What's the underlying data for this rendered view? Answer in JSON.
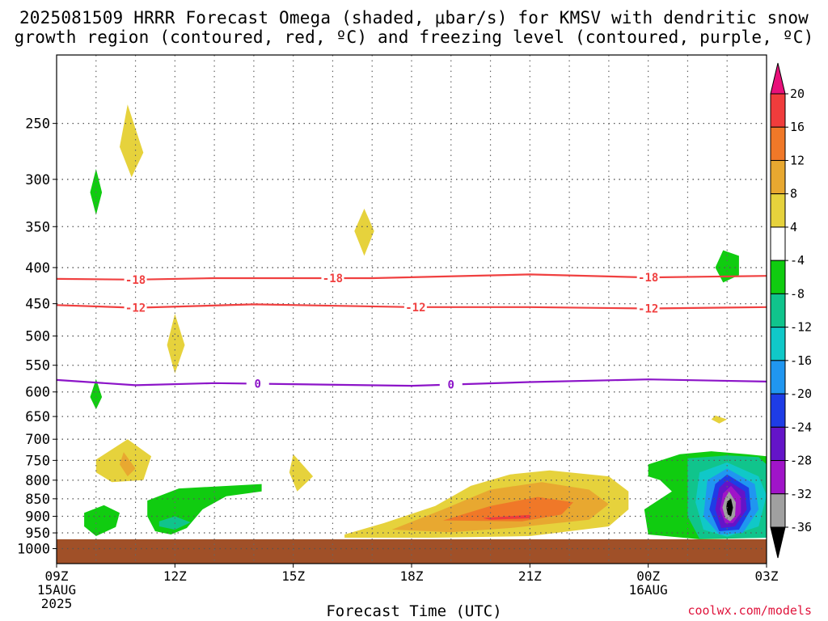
{
  "title_line1": "2025081509 HRRR Forecast Omega (shaded, μbar/s) for KMSV with dendritic snow",
  "title_line2": "growth region (contoured, red, ºC) and freezing level (contoured, purple, ºC)",
  "credit": "coolwx.com/models",
  "chart_data": {
    "type": "contour",
    "title": "2025081509 HRRR Forecast Omega (shaded, μbar/s) for KMSV with dendritic snow growth region (contoured, red, ºC) and freezing level (contoured, purple, ºC)",
    "xlabel": "Forecast Time (UTC)",
    "ylabel": "",
    "x_ticks": [
      {
        "hour": 0,
        "label": "09Z",
        "label2": "15AUG",
        "label3": "2025"
      },
      {
        "hour": 3,
        "label": "12Z"
      },
      {
        "hour": 6,
        "label": "15Z"
      },
      {
        "hour": 9,
        "label": "18Z"
      },
      {
        "hour": 12,
        "label": "21Z"
      },
      {
        "hour": 15,
        "label": "00Z",
        "label2": "16AUG"
      },
      {
        "hour": 18,
        "label": "03Z"
      }
    ],
    "xlim": [
      0,
      18
    ],
    "y_scale": "log",
    "ylim": [
      1050,
      200
    ],
    "y_ticks": [
      250,
      300,
      350,
      400,
      450,
      500,
      550,
      600,
      650,
      700,
      750,
      800,
      850,
      900,
      950,
      1000
    ],
    "grid": true,
    "colorbar": {
      "labels": [
        "20",
        "16",
        "12",
        "8",
        "4",
        "-4",
        "-8",
        "-12",
        "-16",
        "-20",
        "-24",
        "-28",
        "-32",
        "-36"
      ],
      "colors": [
        "#e8107a",
        "#f03c3c",
        "#f07828",
        "#e8a830",
        "#e6d23c",
        "#ffffff",
        "#10cc10",
        "#10c48c",
        "#10c8c8",
        "#2096f0",
        "#1e3ce6",
        "#6414c8",
        "#a014c8",
        "#a0a0a0",
        "#000000"
      ]
    },
    "temperature_contours": [
      {
        "value": -18,
        "color": "#f04040",
        "label": "-18",
        "points": [
          [
            0,
            415
          ],
          [
            2,
            416
          ],
          [
            4,
            414
          ],
          [
            8,
            414
          ],
          [
            12,
            409
          ],
          [
            15,
            413
          ],
          [
            18,
            411
          ]
        ],
        "label_hours": [
          2.0,
          7.0,
          15.0
        ]
      },
      {
        "value": -12,
        "color": "#f04040",
        "label": "-12",
        "points": [
          [
            0,
            452
          ],
          [
            2,
            456
          ],
          [
            5,
            451
          ],
          [
            9,
            455
          ],
          [
            12,
            455
          ],
          [
            15,
            457
          ],
          [
            18,
            455
          ]
        ],
        "label_hours": [
          2.0,
          9.1,
          15.0
        ]
      },
      {
        "value": 0,
        "color": "#8c14c8",
        "label": "0",
        "points": [
          [
            0,
            577
          ],
          [
            2,
            587
          ],
          [
            4,
            583
          ],
          [
            6,
            585
          ],
          [
            9,
            588
          ],
          [
            12,
            581
          ],
          [
            15,
            576
          ],
          [
            18,
            580
          ]
        ],
        "label_hours": [
          5.1,
          10.0
        ]
      }
    ],
    "omega_regions": [
      {
        "level": 4,
        "color": "#e6d23c",
        "points": [
          [
            1.8,
            235
          ],
          [
            2.2,
            275
          ],
          [
            1.9,
            298
          ],
          [
            1.6,
            270
          ]
        ]
      },
      {
        "level": -4,
        "color": "#10cc10",
        "points": [
          [
            1.0,
            290
          ],
          [
            1.15,
            313
          ],
          [
            1.0,
            337
          ],
          [
            0.85,
            313
          ]
        ]
      },
      {
        "level": 4,
        "color": "#e6d23c",
        "points": [
          [
            7.8,
            330
          ],
          [
            8.05,
            355
          ],
          [
            7.8,
            385
          ],
          [
            7.55,
            355
          ]
        ]
      },
      {
        "level": -4,
        "color": "#10cc10",
        "points": [
          [
            16.9,
            378
          ],
          [
            17.3,
            385
          ],
          [
            17.3,
            410
          ],
          [
            16.9,
            420
          ],
          [
            16.7,
            400
          ]
        ]
      },
      {
        "level": 4,
        "color": "#e6d23c",
        "points": [
          [
            3.0,
            465
          ],
          [
            3.25,
            515
          ],
          [
            3.0,
            565
          ],
          [
            2.8,
            515
          ]
        ]
      },
      {
        "level": -4,
        "color": "#10cc10",
        "points": [
          [
            1.0,
            575
          ],
          [
            1.15,
            610
          ],
          [
            1.0,
            635
          ],
          [
            0.85,
            610
          ]
        ]
      },
      {
        "level": 4,
        "color": "#e6d23c",
        "points": [
          [
            16.7,
            648
          ],
          [
            17.0,
            656
          ],
          [
            16.8,
            665
          ],
          [
            16.6,
            656
          ]
        ]
      },
      {
        "level": 4,
        "color": "#e6d23c",
        "points": [
          [
            1.0,
            748
          ],
          [
            1.8,
            700
          ],
          [
            2.4,
            740
          ],
          [
            2.2,
            800
          ],
          [
            1.4,
            805
          ],
          [
            1.0,
            780
          ]
        ]
      },
      {
        "level": 8,
        "color": "#e8a830",
        "points": [
          [
            1.7,
            730
          ],
          [
            2.0,
            770
          ],
          [
            1.8,
            790
          ],
          [
            1.6,
            760
          ]
        ]
      },
      {
        "level": 4,
        "color": "#e6d23c",
        "points": [
          [
            6.0,
            735
          ],
          [
            6.5,
            790
          ],
          [
            6.1,
            830
          ],
          [
            5.9,
            780
          ]
        ]
      },
      {
        "level": -4,
        "color": "#10cc10",
        "points": [
          [
            0.7,
            890
          ],
          [
            1.2,
            868
          ],
          [
            1.6,
            890
          ],
          [
            1.5,
            932
          ],
          [
            1.0,
            960
          ],
          [
            0.7,
            930
          ]
        ]
      },
      {
        "level": -4,
        "color": "#10cc10",
        "points": [
          [
            2.3,
            855
          ],
          [
            3.1,
            822
          ],
          [
            5.2,
            810
          ],
          [
            5.2,
            830
          ],
          [
            4.3,
            843
          ],
          [
            3.7,
            880
          ],
          [
            3.3,
            935
          ],
          [
            2.9,
            955
          ],
          [
            2.5,
            945
          ],
          [
            2.3,
            900
          ]
        ]
      },
      {
        "level": -8,
        "color": "#10c48c",
        "points": [
          [
            2.6,
            915
          ],
          [
            3.0,
            900
          ],
          [
            3.4,
            918
          ],
          [
            3.0,
            940
          ],
          [
            2.6,
            930
          ]
        ]
      },
      {
        "level": 4,
        "color": "#e6d23c",
        "points": [
          [
            7.3,
            955
          ],
          [
            8.3,
            920
          ],
          [
            9.6,
            870
          ],
          [
            10.5,
            815
          ],
          [
            11.5,
            785
          ],
          [
            12.5,
            775
          ],
          [
            14.0,
            790
          ],
          [
            14.5,
            830
          ],
          [
            14.5,
            880
          ],
          [
            14.0,
            930
          ],
          [
            12.0,
            960
          ],
          [
            9.5,
            965
          ],
          [
            7.3,
            965
          ]
        ]
      },
      {
        "level": 8,
        "color": "#e8a830",
        "points": [
          [
            8.5,
            940
          ],
          [
            9.8,
            880
          ],
          [
            11.0,
            825
          ],
          [
            12.3,
            805
          ],
          [
            13.5,
            825
          ],
          [
            14.0,
            865
          ],
          [
            13.5,
            910
          ],
          [
            11.5,
            935
          ],
          [
            10.0,
            948
          ]
        ]
      },
      {
        "level": 12,
        "color": "#f07828",
        "points": [
          [
            9.8,
            912
          ],
          [
            11.0,
            870
          ],
          [
            12.2,
            845
          ],
          [
            13.1,
            860
          ],
          [
            12.8,
            895
          ],
          [
            11.8,
            915
          ]
        ]
      },
      {
        "level": 16,
        "color": "#f03c3c",
        "points": [
          [
            10.8,
            905
          ],
          [
            12.0,
            896
          ],
          [
            12.0,
            906
          ],
          [
            11.0,
            910
          ]
        ]
      },
      {
        "level": -4,
        "color": "#10cc10",
        "points": [
          [
            15.0,
            760
          ],
          [
            15.8,
            735
          ],
          [
            16.6,
            728
          ],
          [
            17.5,
            735
          ],
          [
            18,
            740
          ],
          [
            18,
            965
          ],
          [
            16.3,
            970
          ],
          [
            15.0,
            955
          ],
          [
            14.9,
            880
          ],
          [
            15.6,
            830
          ],
          [
            15.3,
            800
          ],
          [
            15.0,
            790
          ]
        ]
      },
      {
        "level": -8,
        "color": "#10c48c",
        "points": [
          [
            16.0,
            745
          ],
          [
            17.0,
            738
          ],
          [
            17.8,
            742
          ],
          [
            18,
            760
          ],
          [
            18,
            965
          ],
          [
            16.3,
            968
          ],
          [
            16.0,
            900
          ]
        ]
      },
      {
        "level": -12,
        "color": "#10c8c8",
        "points": [
          [
            16.3,
            780
          ],
          [
            17.0,
            755
          ],
          [
            17.8,
            790
          ],
          [
            18,
            840
          ],
          [
            17.8,
            930
          ],
          [
            17.0,
            962
          ],
          [
            16.4,
            940
          ],
          [
            16.2,
            860
          ]
        ]
      },
      {
        "level": -16,
        "color": "#2096f0",
        "points": [
          [
            16.5,
            800
          ],
          [
            17.0,
            770
          ],
          [
            17.7,
            810
          ],
          [
            17.8,
            880
          ],
          [
            17.4,
            950
          ],
          [
            16.8,
            955
          ],
          [
            16.4,
            900
          ]
        ]
      },
      {
        "level": -20,
        "color": "#1e3ce6",
        "points": [
          [
            16.7,
            810
          ],
          [
            17.0,
            785
          ],
          [
            17.55,
            820
          ],
          [
            17.6,
            880
          ],
          [
            17.3,
            940
          ],
          [
            16.8,
            945
          ],
          [
            16.55,
            880
          ]
        ]
      },
      {
        "level": -24,
        "color": "#6414c8",
        "points": [
          [
            16.8,
            820
          ],
          [
            17.0,
            800
          ],
          [
            17.45,
            830
          ],
          [
            17.5,
            880
          ],
          [
            17.2,
            930
          ],
          [
            16.85,
            935
          ],
          [
            16.7,
            880
          ]
        ]
      },
      {
        "level": -28,
        "color": "#a014c8",
        "points": [
          [
            16.9,
            835
          ],
          [
            17.1,
            815
          ],
          [
            17.35,
            845
          ],
          [
            17.35,
            890
          ],
          [
            17.15,
            920
          ],
          [
            16.95,
            920
          ],
          [
            16.82,
            880
          ]
        ]
      },
      {
        "level": -32,
        "color": "#a0a0a0",
        "points": [
          [
            16.95,
            848
          ],
          [
            17.05,
            830
          ],
          [
            17.22,
            860
          ],
          [
            17.2,
            900
          ],
          [
            17.08,
            915
          ],
          [
            16.95,
            905
          ],
          [
            16.88,
            875
          ]
        ]
      },
      {
        "level": -36,
        "color": "#000000",
        "points": [
          [
            17.0,
            858
          ],
          [
            17.1,
            850
          ],
          [
            17.15,
            875
          ],
          [
            17.1,
            900
          ],
          [
            17.02,
            895
          ],
          [
            16.98,
            875
          ]
        ]
      }
    ],
    "surface_fill": {
      "color": "#a05028",
      "top_hpa": 970
    }
  }
}
